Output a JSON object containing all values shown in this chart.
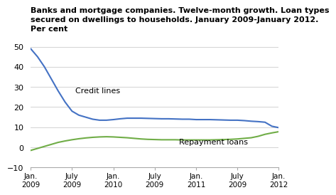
{
  "title_line1": "Banks and mortgage companies. Twelve-month growth. Loan types",
  "title_line2": "secured on dwellings to households. January 2009-January 2012.",
  "title_line3": "Per cent",
  "credit_lines": [
    49.0,
    45.0,
    40.0,
    34.0,
    28.0,
    22.5,
    18.0,
    16.0,
    15.0,
    14.0,
    13.5,
    13.5,
    13.8,
    14.2,
    14.5,
    14.5,
    14.5,
    14.4,
    14.3,
    14.2,
    14.2,
    14.1,
    14.0,
    14.0,
    13.8,
    13.8,
    13.8,
    13.7,
    13.6,
    13.5,
    13.5,
    13.3,
    13.0,
    12.8,
    12.5,
    10.5,
    9.8
  ],
  "repayment_loans": [
    -1.5,
    -0.5,
    0.5,
    1.5,
    2.5,
    3.2,
    3.8,
    4.3,
    4.7,
    5.0,
    5.2,
    5.3,
    5.2,
    5.0,
    4.8,
    4.5,
    4.2,
    4.0,
    3.9,
    3.8,
    3.8,
    3.8,
    3.7,
    3.7,
    3.7,
    3.7,
    3.7,
    3.8,
    3.9,
    4.0,
    4.2,
    4.5,
    4.8,
    5.5,
    6.5,
    7.2,
    7.8
  ],
  "credit_lines_color": "#4472C4",
  "repayment_loans_color": "#70AD47",
  "credit_lines_label": "Credit lines",
  "repayment_loans_label": "Repayment loans",
  "ylim": [
    -10,
    55
  ],
  "yticks": [
    -10,
    0,
    10,
    20,
    30,
    40,
    50
  ],
  "xtick_labels": [
    "Jan.\n2009",
    "July\n2009",
    "Jan.\n2010",
    "July\n2009",
    "Jan.\n2011",
    "July\n2009",
    "Jan.\n2012"
  ],
  "background_color": "#ffffff",
  "grid_color": "#cccccc",
  "title_fontsize": 8.0,
  "label_fontsize": 8.0
}
